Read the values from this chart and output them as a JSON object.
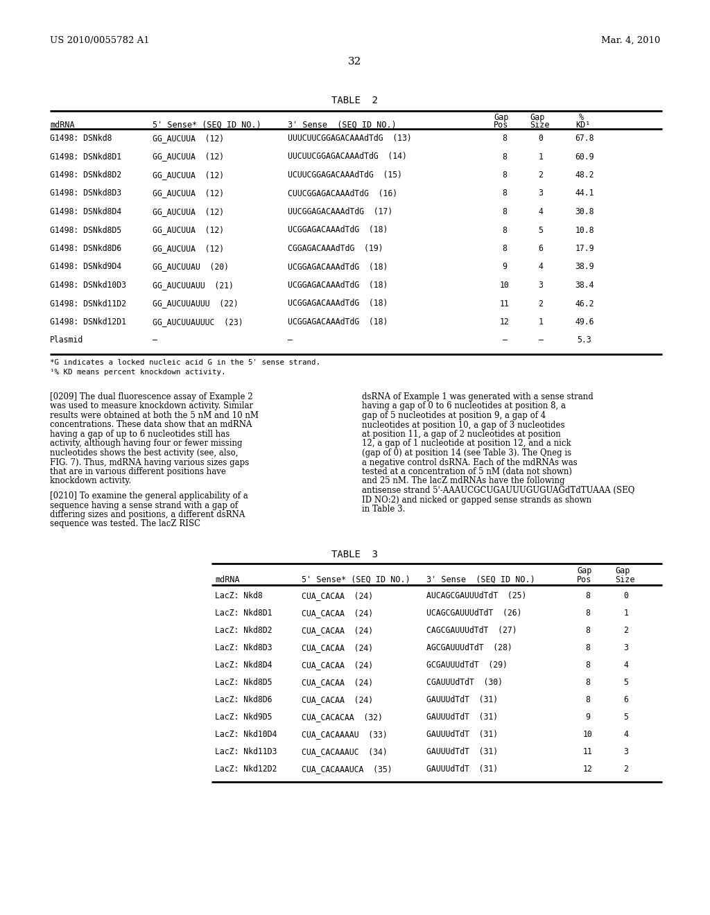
{
  "header_left": "US 2010/0055782 A1",
  "header_right": "Mar. 4, 2010",
  "page_number": "32",
  "table2_title": "TABLE  2",
  "table2_rows": [
    [
      "G1498: DSNkd8",
      "GG̲AUCUUA  (12)",
      "UUUCUUCGGAGACAAAdTdG  (13)",
      "8",
      "0",
      "67.8"
    ],
    [
      "G1498: DSNkd8D1",
      "GG̲AUCUUA  (12)",
      "UUCUUCGGAGACAAAdTdG  (14)",
      "8",
      "1",
      "60.9"
    ],
    [
      "G1498: DSNkd8D2",
      "GG̲AUCUUA  (12)",
      "UCUUCGGAGACAAAdTdG  (15)",
      "8",
      "2",
      "48.2"
    ],
    [
      "G1498: DSNkd8D3",
      "GG̲AUCUUA  (12)",
      "CUUCGGAGACAAAdTdG  (16)",
      "8",
      "3",
      "44.1"
    ],
    [
      "G1498: DSNkd8D4",
      "GG̲AUCUUA  (12)",
      "UUCGGAGACAAAdTdG  (17)",
      "8",
      "4",
      "30.8"
    ],
    [
      "G1498: DSNkd8D5",
      "GG̲AUCUUA  (12)",
      "UCGGAGACAAAdTdG  (18)",
      "8",
      "5",
      "10.8"
    ],
    [
      "G1498: DSNkd8D6",
      "GG̲AUCUUA  (12)",
      "CGGAGACAAAdTdG  (19)",
      "8",
      "6",
      "17.9"
    ],
    [
      "G1498: DSNkd9D4",
      "GG̲AUCUUAU  (20)",
      "UCGGAGACAAAdTdG  (18)",
      "9",
      "4",
      "38.9"
    ],
    [
      "G1498: DSNkd10D3",
      "GG̲AUCUUAUU  (21)",
      "UCGGAGACAAAdTdG  (18)",
      "10",
      "3",
      "38.4"
    ],
    [
      "G1498: DSNkd11D2",
      "GG̲AUCUUAUUU  (22)",
      "UCGGAGACAAAdTdG  (18)",
      "11",
      "2",
      "46.2"
    ],
    [
      "G1498: DSNkd12D1",
      "GG̲AUCUUAUUUC  (23)",
      "UCGGAGACAAAdTdG  (18)",
      "12",
      "1",
      "49.6"
    ],
    [
      "Plasmid",
      "–",
      "–",
      "–",
      "–",
      "5.3"
    ]
  ],
  "table2_footnotes": [
    "*G indicates a locked nucleic acid G in the 5' sense strand.",
    "¹% KD means percent knockdown activity."
  ],
  "para_0209": "[0209]   The dual fluorescence assay of Example 2 was used to measure knockdown activity. Similar results were obtained at both the 5 nM and 10 nM concentrations. These data show that an mdRNA having a gap of up to 6 nucleotides still has activity, although having four or fewer missing nucleotides shows the best activity (see, also, FIG. 7). Thus, mdRNA having various sizes gaps that are in various different positions have knockdown activity.",
  "para_0210": "[0210]   To examine the general applicability of a sequence having a sense strand with a gap of differing sizes and positions, a different dsRNA sequence was tested. The lacZ RISC",
  "para_right": "dsRNA of Example 1 was generated with a sense strand having a gap of 0 to 6 nucleotides at position 8, a gap of 5 nucleotides at position 9, a gap of 4 nucleotides at position 10, a gap of 3 nucleotides at position 11, a gap of 2 nucleotides at position 12, a gap of 1 nucleotide at position 12, and a nick (gap of 0) at position 14 (see Table 3). The Qneg is a negative control dsRNA. Each of the mdRNAs was tested at a concentration of 5 nM (data not shown) and 25 nM. The lacZ mdRNAs have the following antisense strand 5'-AAAUCGCUGAUUUGUGUAGdTdTUAAA (SEQ ID NO:2) and nicked or gapped sense strands as shown in Table 3.",
  "table3_title": "TABLE  3",
  "table3_rows": [
    [
      "LacZ: Nkd8",
      "CUA̲CACAA  (24)",
      "AUCAGCGAUUUdTdT  (25)",
      "8",
      "0"
    ],
    [
      "LacZ: Nkd8D1",
      "CUA̲CACAA  (24)",
      "UCAGCGAUUUdTdT  (26)",
      "8",
      "1"
    ],
    [
      "LacZ: Nkd8D2",
      "CUA̲CACAA  (24)",
      "CAGCGAUUUdTdT  (27)",
      "8",
      "2"
    ],
    [
      "LacZ: Nkd8D3",
      "CUA̲CACAA  (24)",
      "AGCGAUUUdTdT  (28)",
      "8",
      "3"
    ],
    [
      "LacZ: Nkd8D4",
      "CUA̲CACAA  (24)",
      "GCGAUUUdTdT  (29)",
      "8",
      "4"
    ],
    [
      "LacZ: Nkd8D5",
      "CUA̲CACAA  (24)",
      "CGAUUUdTdT  (30)",
      "8",
      "5"
    ],
    [
      "LacZ: Nkd8D6",
      "CUA̲CACAA  (24)",
      "GAUUUdTdT  (31)",
      "8",
      "6"
    ],
    [
      "LacZ: Nkd9D5",
      "CUA̲CACACAA  (32)",
      "GAUUUdTdT  (31)",
      "9",
      "5"
    ],
    [
      "LacZ: Nkd10D4",
      "CUA̲CACAAAAU  (33)",
      "GAUUUdTdT  (31)",
      "10",
      "4"
    ],
    [
      "LacZ: Nkd11D3",
      "CUA̲CACAAAUC  (34)",
      "GAUUUdTdT  (31)",
      "11",
      "3"
    ],
    [
      "LacZ: Nkd12D2",
      "CUA̲CACAAAUCA  (35)",
      "GAUUUdTdT  (31)",
      "12",
      "2"
    ]
  ]
}
